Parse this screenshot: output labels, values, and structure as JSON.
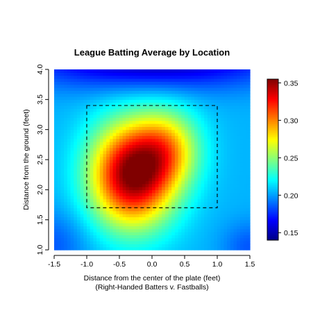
{
  "chart_data": {
    "type": "heatmap",
    "title": "League Batting Average by Location",
    "xlabel": "Distance from the center of the plate (feet)",
    "xlabel_line2": "(Right-Handed Batters v. Fastballs)",
    "ylabel": "Distance from the ground (feet)",
    "xlim": [
      -1.5,
      1.5
    ],
    "ylim": [
      1.0,
      4.0
    ],
    "x_ticks": [
      -1.5,
      -1.0,
      -0.5,
      0.0,
      0.5,
      1.0,
      1.5
    ],
    "x_tick_labels": [
      "-1.5",
      "-1.0",
      "-0.5",
      "0.0",
      "0.5",
      "1.0",
      "1.5"
    ],
    "y_ticks": [
      1.0,
      1.5,
      2.0,
      2.5,
      3.0,
      3.5,
      4.0
    ],
    "y_tick_labels": [
      "1.0",
      "1.5",
      "2.0",
      "2.5",
      "3.0",
      "3.5",
      "4.0"
    ],
    "strike_zone": {
      "x": [
        -1.0,
        1.0
      ],
      "y": [
        1.7,
        3.4
      ]
    },
    "colorbar": {
      "range": [
        0.14,
        0.355
      ],
      "ticks": [
        0.15,
        0.2,
        0.25,
        0.3,
        0.35
      ],
      "tick_labels": [
        "0.15",
        "0.20",
        "0.25",
        "0.30",
        "0.35"
      ]
    },
    "surface": {
      "base": 0.205,
      "blobs": [
        {
          "x": -0.3,
          "y": 2.25,
          "amp": 0.15,
          "sx": 0.45,
          "sy": 0.6
        },
        {
          "x": 0.25,
          "y": 2.7,
          "amp": 0.06,
          "sx": 0.35,
          "sy": 0.45
        },
        {
          "x": 0.0,
          "y": 4.2,
          "amp": -0.06,
          "sx": 1.4,
          "sy": 0.35
        },
        {
          "x": -1.55,
          "y": 1.1,
          "amp": -0.02,
          "sx": 0.4,
          "sy": 0.4
        },
        {
          "x": 1.5,
          "y": 1.05,
          "amp": -0.02,
          "sx": 0.3,
          "sy": 0.3
        }
      ]
    }
  }
}
